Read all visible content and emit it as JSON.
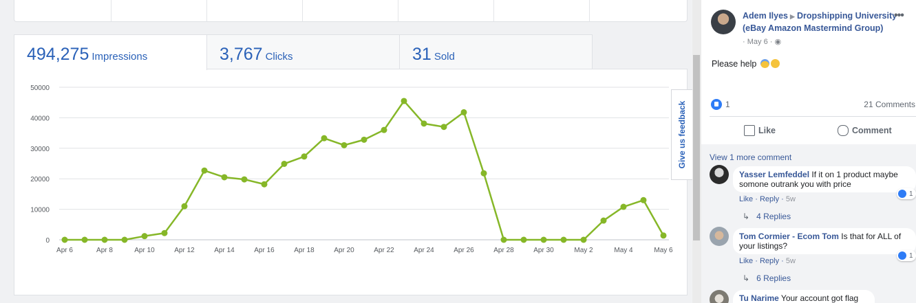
{
  "ebay": {
    "tabs": [
      {
        "value": "494,275",
        "label": "Impressions"
      },
      {
        "value": "3,767",
        "label": "Clicks"
      },
      {
        "value": "31",
        "label": "Sold"
      }
    ],
    "feedback_label": "Give us feedback",
    "colors": {
      "accent": "#2a61b8",
      "line": "#86b728"
    }
  },
  "chart_data": {
    "type": "line",
    "title": "",
    "xlabel": "",
    "ylabel": "",
    "ylim": [
      0,
      50000
    ],
    "yticks": [
      0,
      10000,
      20000,
      30000,
      40000,
      50000
    ],
    "xtick_labels": [
      "Apr 6",
      "Apr 8",
      "Apr 10",
      "Apr 12",
      "Apr 14",
      "Apr 16",
      "Apr 18",
      "Apr 20",
      "Apr 22",
      "Apr 24",
      "Apr 26",
      "Apr 28",
      "Apr 30",
      "May 2",
      "May 4",
      "May 6"
    ],
    "grid": true,
    "legend": "none",
    "series": [
      {
        "color": "#86b728",
        "x": [
          "Apr 6",
          "Apr 7",
          "Apr 8",
          "Apr 9",
          "Apr 10",
          "Apr 11",
          "Apr 12",
          "Apr 13",
          "Apr 14",
          "Apr 15",
          "Apr 16",
          "Apr 17",
          "Apr 18",
          "Apr 19",
          "Apr 20",
          "Apr 21",
          "Apr 22",
          "Apr 23",
          "Apr 24",
          "Apr 25",
          "Apr 26",
          "Apr 27",
          "Apr 28",
          "Apr 29",
          "Apr 30",
          "May 1",
          "May 2",
          "May 3",
          "May 4",
          "May 5",
          "May 6"
        ],
        "values": [
          0,
          0,
          0,
          0,
          1200,
          2200,
          11000,
          22700,
          20500,
          19800,
          18200,
          24900,
          27300,
          33300,
          31000,
          32800,
          36000,
          45500,
          38100,
          37000,
          41800,
          21800,
          0,
          0,
          0,
          0,
          0,
          6300,
          10800,
          13000,
          1400
        ]
      }
    ]
  },
  "facebook": {
    "post": {
      "author": "Adem Ilyes",
      "group": "Dropshipping University (eBay Amazon Mastermind Group)",
      "date": "May 6",
      "text": "Please help",
      "likes": "1",
      "comments_count": "21 Comments",
      "like_label": "Like",
      "comment_label": "Comment"
    },
    "view_more": "View 1 more comment",
    "comments": [
      {
        "name": "Yasser Lemfeddel",
        "text": "If it on 1 product maybe somone outrank you with price",
        "like": "Like",
        "reply": "Reply",
        "time": "5w",
        "reactions": "1",
        "replies": "4 Replies"
      },
      {
        "name": "Tom Cormier - Ecom Tom",
        "text": "Is that for ALL of your listings?",
        "like": "Like",
        "reply": "Reply",
        "time": "5w",
        "reactions": "1",
        "replies": "6 Replies"
      },
      {
        "name": "Tu Narime",
        "text": "Your account got flag"
      }
    ]
  }
}
